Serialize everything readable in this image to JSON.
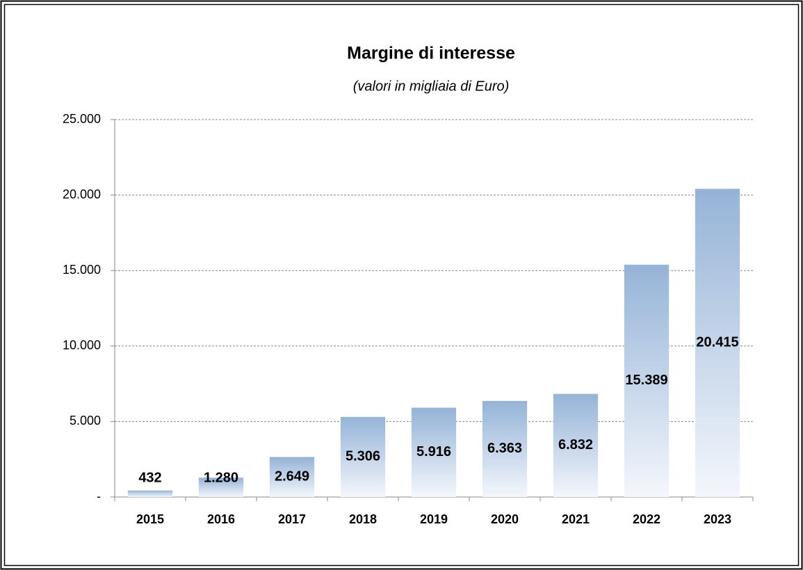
{
  "chart_data": {
    "type": "bar",
    "title": "Margine di interesse",
    "subtitle": "(valori in migliaia di Euro)",
    "categories": [
      "2015",
      "2016",
      "2017",
      "2018",
      "2019",
      "2020",
      "2021",
      "2022",
      "2023"
    ],
    "values": [
      432,
      1280,
      2649,
      5306,
      5916,
      6363,
      6832,
      15389,
      20415
    ],
    "value_labels": [
      "432",
      "1.280",
      "2.649",
      "5.306",
      "5.916",
      "6.363",
      "6.832",
      "15.389",
      "20.415"
    ],
    "color": "#95b3d7",
    "ylim": [
      0,
      25000
    ],
    "yticks": [
      {
        "value": 0,
        "label": "-"
      },
      {
        "value": 5000,
        "label": "5.000"
      },
      {
        "value": 10000,
        "label": "10.000"
      },
      {
        "value": 15000,
        "label": "15.000"
      },
      {
        "value": 20000,
        "label": "20.000"
      },
      {
        "value": 25000,
        "label": "25.000"
      }
    ],
    "grid": true
  }
}
